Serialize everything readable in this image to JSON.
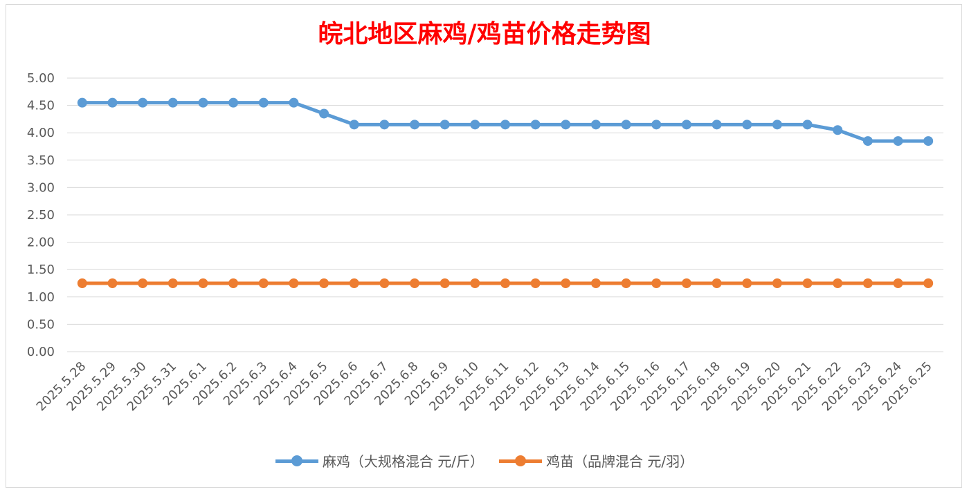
{
  "chart_data": {
    "type": "line",
    "title": "皖北地区麻鸡/鸡苗价格走势图",
    "categories": [
      "2025.5.28",
      "2025.5.29",
      "2025.5.30",
      "2025.5.31",
      "2025.6.1",
      "2025.6.2",
      "2025.6.3",
      "2025.6.4",
      "2025.6.5",
      "2025.6.6",
      "2025.6.7",
      "2025.6.8",
      "2025.6.9",
      "2025.6.10",
      "2025.6.11",
      "2025.6.12",
      "2025.6.13",
      "2025.6.14",
      "2025.6.15",
      "2025.6.16",
      "2025.6.17",
      "2025.6.18",
      "2025.6.19",
      "2025.6.20",
      "2025.6.21",
      "2025.6.22",
      "2025.6.23",
      "2025.6.24",
      "2025.6.25"
    ],
    "series": [
      {
        "name": "麻鸡（大规格混合 元/斤）",
        "color": "#5b9bd5",
        "values": [
          4.55,
          4.55,
          4.55,
          4.55,
          4.55,
          4.55,
          4.55,
          4.55,
          4.35,
          4.15,
          4.15,
          4.15,
          4.15,
          4.15,
          4.15,
          4.15,
          4.15,
          4.15,
          4.15,
          4.15,
          4.15,
          4.15,
          4.15,
          4.15,
          4.15,
          4.05,
          3.85,
          3.85,
          3.85
        ]
      },
      {
        "name": "鸡苗（品牌混合 元/羽）",
        "color": "#ed7d31",
        "values": [
          1.25,
          1.25,
          1.25,
          1.25,
          1.25,
          1.25,
          1.25,
          1.25,
          1.25,
          1.25,
          1.25,
          1.25,
          1.25,
          1.25,
          1.25,
          1.25,
          1.25,
          1.25,
          1.25,
          1.25,
          1.25,
          1.25,
          1.25,
          1.25,
          1.25,
          1.25,
          1.25,
          1.25,
          1.25
        ]
      }
    ],
    "ylim": [
      0,
      5
    ],
    "yticks": [
      "0.00",
      "0.50",
      "1.00",
      "1.50",
      "2.00",
      "2.50",
      "3.00",
      "3.50",
      "4.00",
      "4.50",
      "5.00"
    ],
    "xlabel": "",
    "ylabel": "",
    "grid": true,
    "legend": "bottom"
  }
}
